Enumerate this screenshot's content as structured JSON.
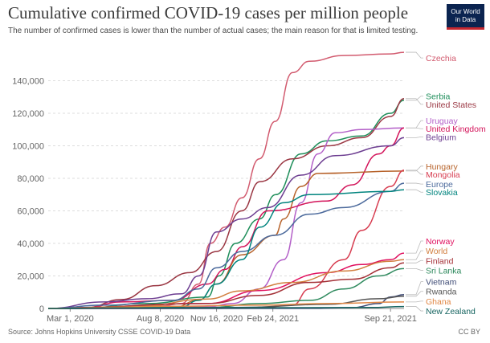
{
  "header": {
    "title": "Cumulative confirmed COVID-19 cases per million people",
    "subtitle": "The number of confirmed cases is lower than the number of actual cases; the main reason for that is limited testing.",
    "logo_line1": "Our World",
    "logo_line2": "in Data"
  },
  "footer": {
    "source": "Source: Johns Hopkins University CSSE COVID-19 Data",
    "license": "CC BY"
  },
  "chart_data": {
    "type": "line",
    "title": "Cumulative confirmed COVID-19 cases per million people",
    "subtitle": "The number of confirmed cases is lower than the number of actual cases; the main reason for that is limited testing.",
    "xlabel": "",
    "ylabel": "",
    "x_start": "2020-01-22",
    "x_end": "2021-10-15",
    "ylim": [
      0,
      160000
    ],
    "x_ticks": [
      {
        "date": "2020-03-01",
        "label": "Mar 1, 2020"
      },
      {
        "date": "2020-08-08",
        "label": "Aug 8, 2020"
      },
      {
        "date": "2020-11-16",
        "label": "Nov 16, 2020"
      },
      {
        "date": "2021-02-24",
        "label": "Feb 24, 2021"
      },
      {
        "date": "2021-09-21",
        "label": "Sep 21, 2021"
      }
    ],
    "y_ticks": [
      {
        "value": 0,
        "label": "0"
      },
      {
        "value": 20000,
        "label": "20,000"
      },
      {
        "value": 40000,
        "label": "40,000"
      },
      {
        "value": 60000,
        "label": "60,000"
      },
      {
        "value": 80000,
        "label": "80,000"
      },
      {
        "value": 100000,
        "label": "100,000"
      },
      {
        "value": 120000,
        "label": "120,000"
      },
      {
        "value": 140000,
        "label": "140,000"
      }
    ],
    "grid": true,
    "legend": "right",
    "series": [
      {
        "name": "Czechia",
        "color": "#d25b6f",
        "labelValue": 154000,
        "points": [
          [
            "2020-01-22",
            0
          ],
          [
            "2020-03-15",
            50
          ],
          [
            "2020-08-08",
            1500
          ],
          [
            "2020-09-15",
            3000
          ],
          [
            "2020-10-15",
            15000
          ],
          [
            "2020-11-05",
            40000
          ],
          [
            "2020-12-01",
            50000
          ],
          [
            "2020-12-31",
            68000
          ],
          [
            "2021-01-31",
            92000
          ],
          [
            "2021-02-28",
            115000
          ],
          [
            "2021-03-31",
            145000
          ],
          [
            "2021-04-30",
            152000
          ],
          [
            "2021-06-30",
            155500
          ],
          [
            "2021-09-21",
            156500
          ],
          [
            "2021-10-15",
            157500
          ]
        ]
      },
      {
        "name": "Serbia",
        "color": "#1e8e5a",
        "labelValue": 130500,
        "points": [
          [
            "2020-01-22",
            0
          ],
          [
            "2020-03-15",
            10
          ],
          [
            "2020-07-15",
            3000
          ],
          [
            "2020-10-31",
            7000
          ],
          [
            "2020-11-20",
            20000
          ],
          [
            "2020-12-20",
            40000
          ],
          [
            "2021-01-31",
            55000
          ],
          [
            "2021-03-01",
            70000
          ],
          [
            "2021-04-15",
            95000
          ],
          [
            "2021-05-31",
            103000
          ],
          [
            "2021-08-01",
            106000
          ],
          [
            "2021-09-21",
            120000
          ],
          [
            "2021-10-15",
            128000
          ]
        ]
      },
      {
        "name": "United States",
        "color": "#9a3642",
        "labelValue": 125500,
        "points": [
          [
            "2020-01-22",
            0
          ],
          [
            "2020-03-31",
            600
          ],
          [
            "2020-05-31",
            5500
          ],
          [
            "2020-07-31",
            14000
          ],
          [
            "2020-09-30",
            22000
          ],
          [
            "2020-11-16",
            35000
          ],
          [
            "2020-12-31",
            60000
          ],
          [
            "2021-02-01",
            78000
          ],
          [
            "2021-03-31",
            92000
          ],
          [
            "2021-06-01",
            100000
          ],
          [
            "2021-08-01",
            105000
          ],
          [
            "2021-09-21",
            118000
          ],
          [
            "2021-10-15",
            129000
          ]
        ]
      },
      {
        "name": "Uruguay",
        "color": "#b35fc8",
        "labelValue": 115500,
        "points": [
          [
            "2020-01-22",
            0
          ],
          [
            "2020-11-01",
            1000
          ],
          [
            "2020-12-15",
            3000
          ],
          [
            "2021-01-31",
            12000
          ],
          [
            "2021-03-15",
            30000
          ],
          [
            "2021-04-15",
            65000
          ],
          [
            "2021-05-15",
            95000
          ],
          [
            "2021-06-15",
            108000
          ],
          [
            "2021-08-01",
            110000
          ],
          [
            "2021-10-15",
            111000
          ]
        ]
      },
      {
        "name": "United Kingdom",
        "color": "#d3145a",
        "labelValue": 110500,
        "points": [
          [
            "2020-01-22",
            0
          ],
          [
            "2020-03-31",
            500
          ],
          [
            "2020-05-31",
            4000
          ],
          [
            "2020-08-31",
            5000
          ],
          [
            "2020-10-31",
            15000
          ],
          [
            "2020-12-01",
            24000
          ],
          [
            "2021-01-01",
            38000
          ],
          [
            "2021-02-15",
            60000
          ],
          [
            "2021-05-31",
            66000
          ],
          [
            "2021-07-15",
            76000
          ],
          [
            "2021-08-31",
            95000
          ],
          [
            "2021-09-21",
            100000
          ],
          [
            "2021-10-15",
            111000
          ]
        ]
      },
      {
        "name": "Belgium",
        "color": "#6d3e91",
        "labelValue": 105500,
        "points": [
          [
            "2020-01-22",
            0
          ],
          [
            "2020-04-30",
            4000
          ],
          [
            "2020-07-15",
            6000
          ],
          [
            "2020-09-15",
            9000
          ],
          [
            "2020-10-15",
            20000
          ],
          [
            "2020-11-16",
            47000
          ],
          [
            "2020-12-31",
            55000
          ],
          [
            "2021-02-15",
            62000
          ],
          [
            "2021-04-15",
            82000
          ],
          [
            "2021-06-15",
            94000
          ],
          [
            "2021-09-21",
            100000
          ],
          [
            "2021-10-15",
            105000
          ]
        ]
      },
      {
        "name": "Hungary",
        "color": "#b7632b",
        "labelValue": 87500,
        "points": [
          [
            "2020-01-22",
            0
          ],
          [
            "2020-08-31",
            600
          ],
          [
            "2020-10-15",
            5000
          ],
          [
            "2020-11-16",
            15000
          ],
          [
            "2020-12-31",
            33000
          ],
          [
            "2021-02-28",
            45000
          ],
          [
            "2021-03-15",
            55000
          ],
          [
            "2021-04-15",
            75000
          ],
          [
            "2021-05-15",
            83000
          ],
          [
            "2021-10-15",
            84500
          ]
        ]
      },
      {
        "name": "Mongolia",
        "color": "#d73c50",
        "labelValue": 82500,
        "points": [
          [
            "2020-01-22",
            0
          ],
          [
            "2020-11-01",
            50
          ],
          [
            "2021-01-31",
            500
          ],
          [
            "2021-03-31",
            2000
          ],
          [
            "2021-04-30",
            12000
          ],
          [
            "2021-06-30",
            30000
          ],
          [
            "2021-08-01",
            48000
          ],
          [
            "2021-09-21",
            75000
          ],
          [
            "2021-10-15",
            85000
          ]
        ]
      },
      {
        "name": "Europe",
        "color": "#4c6a9c",
        "labelValue": 76500,
        "points": [
          [
            "2020-01-22",
            0
          ],
          [
            "2020-04-30",
            2000
          ],
          [
            "2020-08-31",
            5000
          ],
          [
            "2020-10-15",
            12000
          ],
          [
            "2020-11-16",
            25000
          ],
          [
            "2020-12-31",
            35000
          ],
          [
            "2021-02-28",
            45000
          ],
          [
            "2021-04-30",
            58000
          ],
          [
            "2021-06-30",
            62000
          ],
          [
            "2021-09-21",
            72000
          ],
          [
            "2021-10-15",
            77000
          ]
        ]
      },
      {
        "name": "Slovakia",
        "color": "#00847e",
        "labelValue": 71500,
        "points": [
          [
            "2020-01-22",
            0
          ],
          [
            "2020-09-15",
            1000
          ],
          [
            "2020-10-15",
            5000
          ],
          [
            "2020-11-16",
            15000
          ],
          [
            "2020-12-31",
            30000
          ],
          [
            "2021-02-01",
            50000
          ],
          [
            "2021-03-15",
            65000
          ],
          [
            "2021-04-30",
            70000
          ],
          [
            "2021-09-21",
            72000
          ],
          [
            "2021-10-15",
            73000
          ]
        ]
      },
      {
        "name": "Norway",
        "color": "#e0115f",
        "labelValue": 41500,
        "points": [
          [
            "2020-01-22",
            0
          ],
          [
            "2020-10-31",
            3000
          ],
          [
            "2021-01-31",
            11000
          ],
          [
            "2021-05-31",
            22000
          ],
          [
            "2021-08-01",
            27000
          ],
          [
            "2021-09-21",
            30000
          ],
          [
            "2021-10-15",
            34000
          ]
        ]
      },
      {
        "name": "World",
        "color": "#d17e3e",
        "labelValue": 35500,
        "points": [
          [
            "2020-01-22",
            0
          ],
          [
            "2020-06-30",
            1300
          ],
          [
            "2020-10-31",
            5800
          ],
          [
            "2020-12-31",
            10800
          ],
          [
            "2021-03-31",
            16000
          ],
          [
            "2021-06-30",
            23000
          ],
          [
            "2021-09-21",
            29000
          ],
          [
            "2021-10-15",
            30000
          ]
        ]
      },
      {
        "name": "Finland",
        "color": "#a43137",
        "labelValue": 29500,
        "points": [
          [
            "2020-01-22",
            0
          ],
          [
            "2020-10-31",
            3000
          ],
          [
            "2021-01-31",
            8000
          ],
          [
            "2021-04-30",
            16000
          ],
          [
            "2021-07-15",
            18000
          ],
          [
            "2021-09-21",
            25000
          ],
          [
            "2021-10-15",
            28000
          ]
        ]
      },
      {
        "name": "Sri Lanka",
        "color": "#2f8a5e",
        "labelValue": 23500,
        "points": [
          [
            "2020-01-22",
            0
          ],
          [
            "2020-10-31",
            500
          ],
          [
            "2021-01-31",
            3000
          ],
          [
            "2021-05-01",
            5000
          ],
          [
            "2021-06-30",
            12000
          ],
          [
            "2021-08-31",
            20000
          ],
          [
            "2021-10-15",
            24500
          ]
        ]
      },
      {
        "name": "Vietnam",
        "color": "#3d4a74",
        "labelValue": 16500,
        "points": [
          [
            "2020-01-22",
            0
          ],
          [
            "2021-05-01",
            50
          ],
          [
            "2021-07-15",
            500
          ],
          [
            "2021-08-31",
            3000
          ],
          [
            "2021-09-21",
            7000
          ],
          [
            "2021-10-15",
            8500
          ]
        ]
      },
      {
        "name": "Rwanda",
        "color": "#555555",
        "labelValue": 10500,
        "points": [
          [
            "2020-01-22",
            0
          ],
          [
            "2020-12-31",
            700
          ],
          [
            "2021-05-31",
            2500
          ],
          [
            "2021-08-31",
            6000
          ],
          [
            "2021-10-15",
            7500
          ]
        ]
      },
      {
        "name": "Ghana",
        "color": "#e18745",
        "labelValue": 4500,
        "points": [
          [
            "2020-01-22",
            0
          ],
          [
            "2020-08-31",
            1400
          ],
          [
            "2021-01-31",
            2000
          ],
          [
            "2021-05-31",
            3000
          ],
          [
            "2021-10-15",
            4000
          ]
        ]
      },
      {
        "name": "New Zealand",
        "color": "#176561",
        "labelValue": -1500,
        "points": [
          [
            "2020-01-22",
            0
          ],
          [
            "2020-05-01",
            300
          ],
          [
            "2021-08-15",
            600
          ],
          [
            "2021-10-15",
            1200
          ]
        ]
      }
    ]
  }
}
